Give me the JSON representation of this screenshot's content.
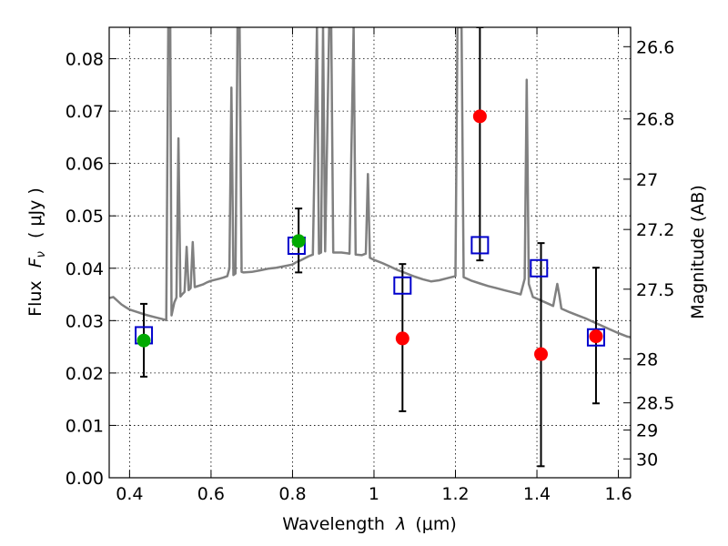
{
  "chart_data": {
    "type": "scatter",
    "title": "",
    "xlabel_text": "Wavelength",
    "xlabel_symbol": "λ",
    "xlabel_unit": "(μm)",
    "ylabel_text": "Flux",
    "ylabel_symbol_base": "F",
    "ylabel_symbol_sub": "ν",
    "ylabel_unit": "( μJy )",
    "y2label": "Magnitude (AB)",
    "xlim": [
      0.35,
      1.63
    ],
    "ylim": [
      0.0,
      0.086
    ],
    "grid": true,
    "grid_style": "dotted",
    "xticks": [
      0.4,
      0.6,
      0.8,
      1.0,
      1.2,
      1.4,
      1.6
    ],
    "xtick_labels": [
      "0.4",
      "0.6",
      "0.8",
      "1",
      "1.2",
      "1.4",
      "1.6"
    ],
    "yticks": [
      0.0,
      0.01,
      0.02,
      0.03,
      0.04,
      0.05,
      0.06,
      0.07,
      0.08
    ],
    "ytick_labels": [
      "0.00",
      "0.01",
      "0.02",
      "0.03",
      "0.04",
      "0.05",
      "0.06",
      "0.07",
      "0.08"
    ],
    "y2ticks": [
      {
        "label": "26.6",
        "flux": 0.0823
      },
      {
        "label": "26.8",
        "flux": 0.0685
      },
      {
        "label": "27",
        "flux": 0.057
      },
      {
        "label": "27.2",
        "flux": 0.0474
      },
      {
        "label": "27.5",
        "flux": 0.036
      },
      {
        "label": "28",
        "flux": 0.0227
      },
      {
        "label": "28.5",
        "flux": 0.0143
      },
      {
        "label": "29",
        "flux": 0.0091
      },
      {
        "label": "30",
        "flux": 0.0036
      }
    ],
    "colors": {
      "model": "#808080",
      "green": "#00aa00",
      "red": "#ff0000",
      "square": "#0000cc",
      "errorbar": "#000000"
    },
    "series": [
      {
        "kind": "model_spectrum",
        "points": [
          [
            0.35,
            0.0343
          ],
          [
            0.36,
            0.0345
          ],
          [
            0.37,
            0.0338
          ],
          [
            0.38,
            0.0331
          ],
          [
            0.39,
            0.0326
          ],
          [
            0.4,
            0.0321
          ],
          [
            0.42,
            0.0316
          ],
          [
            0.44,
            0.0311
          ],
          [
            0.46,
            0.0307
          ],
          [
            0.48,
            0.0303
          ],
          [
            0.49,
            0.0301
          ],
          [
            0.495,
            0.0858
          ],
          [
            0.5,
            0.086
          ],
          [
            0.503,
            0.031
          ],
          [
            0.51,
            0.0335
          ],
          [
            0.515,
            0.0344
          ],
          [
            0.52,
            0.0648
          ],
          [
            0.525,
            0.0346
          ],
          [
            0.53,
            0.0351
          ],
          [
            0.535,
            0.0355
          ],
          [
            0.54,
            0.0441
          ],
          [
            0.545,
            0.0358
          ],
          [
            0.55,
            0.0362
          ],
          [
            0.555,
            0.045
          ],
          [
            0.56,
            0.0364
          ],
          [
            0.58,
            0.0369
          ],
          [
            0.59,
            0.0373
          ],
          [
            0.6,
            0.0376
          ],
          [
            0.61,
            0.0378
          ],
          [
            0.62,
            0.038
          ],
          [
            0.63,
            0.0382
          ],
          [
            0.64,
            0.0385
          ],
          [
            0.645,
            0.04
          ],
          [
            0.65,
            0.0745
          ],
          [
            0.655,
            0.0387
          ],
          [
            0.66,
            0.039
          ],
          [
            0.665,
            0.086
          ],
          [
            0.67,
            0.086
          ],
          [
            0.675,
            0.0393
          ],
          [
            0.68,
            0.0392
          ],
          [
            0.7,
            0.0393
          ],
          [
            0.72,
            0.0396
          ],
          [
            0.74,
            0.0399
          ],
          [
            0.76,
            0.0401
          ],
          [
            0.78,
            0.0404
          ],
          [
            0.8,
            0.0407
          ],
          [
            0.81,
            0.0412
          ],
          [
            0.82,
            0.0415
          ],
          [
            0.83,
            0.0419
          ],
          [
            0.84,
            0.0423
          ],
          [
            0.85,
            0.0426
          ],
          [
            0.86,
            0.086
          ],
          [
            0.865,
            0.0428
          ],
          [
            0.87,
            0.043
          ],
          [
            0.875,
            0.086
          ],
          [
            0.88,
            0.0432
          ],
          [
            0.89,
            0.086
          ],
          [
            0.895,
            0.086
          ],
          [
            0.9,
            0.043
          ],
          [
            0.92,
            0.043
          ],
          [
            0.94,
            0.0428
          ],
          [
            0.95,
            0.086
          ],
          [
            0.955,
            0.0426
          ],
          [
            0.97,
            0.0425
          ],
          [
            0.98,
            0.0428
          ],
          [
            0.985,
            0.058
          ],
          [
            0.99,
            0.042
          ],
          [
            1.0,
            0.0416
          ],
          [
            1.02,
            0.041
          ],
          [
            1.04,
            0.0403
          ],
          [
            1.06,
            0.0396
          ],
          [
            1.08,
            0.039
          ],
          [
            1.1,
            0.0384
          ],
          [
            1.12,
            0.0379
          ],
          [
            1.14,
            0.0375
          ],
          [
            1.16,
            0.0377
          ],
          [
            1.18,
            0.0381
          ],
          [
            1.2,
            0.0385
          ],
          [
            1.205,
            0.086
          ],
          [
            1.215,
            0.086
          ],
          [
            1.22,
            0.0383
          ],
          [
            1.24,
            0.0376
          ],
          [
            1.26,
            0.0371
          ],
          [
            1.28,
            0.0366
          ],
          [
            1.3,
            0.0362
          ],
          [
            1.32,
            0.0358
          ],
          [
            1.34,
            0.0354
          ],
          [
            1.36,
            0.035
          ],
          [
            1.37,
            0.038
          ],
          [
            1.375,
            0.076
          ],
          [
            1.38,
            0.037
          ],
          [
            1.39,
            0.0345
          ],
          [
            1.4,
            0.0342
          ],
          [
            1.42,
            0.0335
          ],
          [
            1.44,
            0.0328
          ],
          [
            1.45,
            0.037
          ],
          [
            1.455,
            0.0348
          ],
          [
            1.46,
            0.0323
          ],
          [
            1.48,
            0.0316
          ],
          [
            1.5,
            0.031
          ],
          [
            1.52,
            0.0304
          ],
          [
            1.54,
            0.0297
          ],
          [
            1.56,
            0.029
          ],
          [
            1.58,
            0.0283
          ],
          [
            1.6,
            0.0276
          ],
          [
            1.62,
            0.027
          ],
          [
            1.63,
            0.0268
          ]
        ]
      },
      {
        "kind": "green_points",
        "points": [
          [
            0.435,
            0.0262
          ],
          [
            0.815,
            0.0452
          ]
        ]
      },
      {
        "kind": "blue_squares",
        "points": [
          [
            0.435,
            0.0272
          ],
          [
            0.81,
            0.0443
          ],
          [
            1.07,
            0.0367
          ],
          [
            1.26,
            0.0444
          ],
          [
            1.405,
            0.04
          ],
          [
            1.545,
            0.0268
          ]
        ]
      },
      {
        "kind": "red_points",
        "points": [
          [
            1.07,
            0.0266
          ],
          [
            1.26,
            0.069
          ],
          [
            1.41,
            0.0236
          ],
          [
            1.545,
            0.027
          ]
        ]
      },
      {
        "kind": "errorbars",
        "points": [
          {
            "x": 0.435,
            "lo": 0.0193,
            "hi": 0.0332
          },
          {
            "x": 0.815,
            "lo": 0.0392,
            "hi": 0.0514
          },
          {
            "x": 1.07,
            "lo": 0.0127,
            "hi": 0.0408
          },
          {
            "x": 1.26,
            "lo": 0.0415,
            "hi": 0.086
          },
          {
            "x": 1.41,
            "lo": 0.0022,
            "hi": 0.0448
          },
          {
            "x": 1.545,
            "lo": 0.0142,
            "hi": 0.0401
          }
        ]
      }
    ]
  }
}
